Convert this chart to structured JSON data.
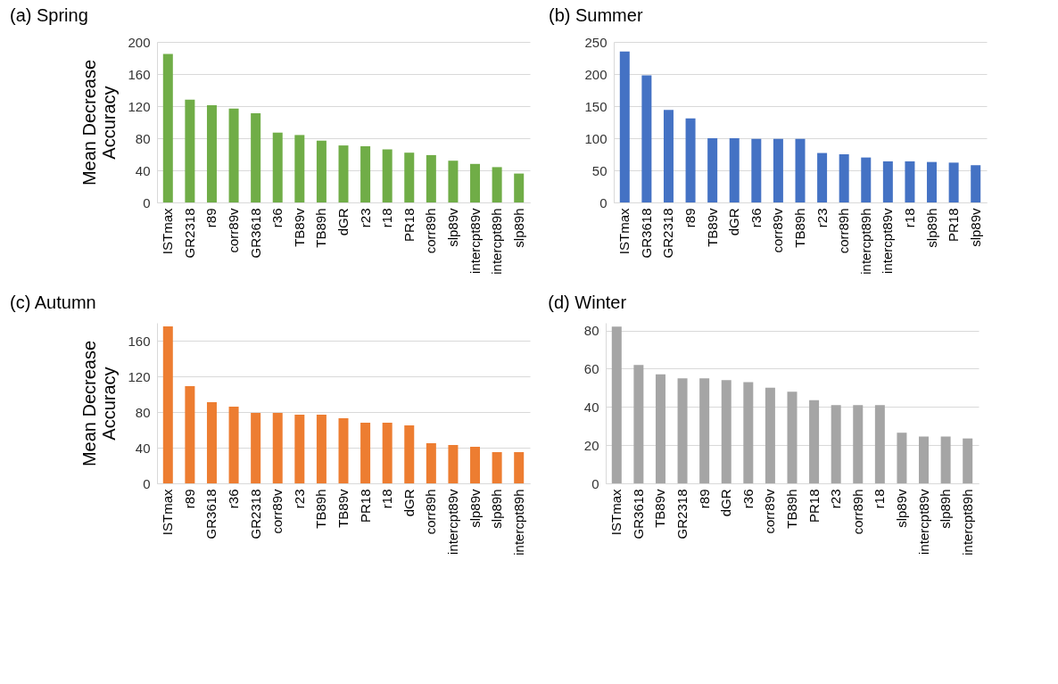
{
  "chart_data": [
    {
      "type": "bar",
      "title": "(a) Spring",
      "ylabel": "Mean Decrease Accuracy",
      "categories": [
        "ISTmax",
        "GR2318",
        "r89",
        "corr89v",
        "GR3618",
        "r36",
        "TB89v",
        "TB89h",
        "dGR",
        "r23",
        "r18",
        "PR18",
        "corr89h",
        "slp89v",
        "intercpt89v",
        "intercpt89h",
        "slp89h"
      ],
      "values": [
        185,
        128,
        121,
        117,
        111,
        87,
        84,
        77,
        71,
        70,
        66,
        62,
        59,
        52,
        48,
        44,
        36
      ],
      "color": "#70ad47",
      "ylim": [
        0,
        200
      ],
      "yticks": [
        0,
        40,
        80,
        120,
        160,
        200
      ],
      "grid": "y"
    },
    {
      "type": "bar",
      "title": "(b) Summer",
      "categories": [
        "ISTmax",
        "GR3618",
        "GR2318",
        "r89",
        "TB89v",
        "dGR",
        "r36",
        "corr89v",
        "TB89h",
        "r23",
        "corr89h",
        "intercpt89h",
        "intercpt89v",
        "r18",
        "slp89h",
        "PR18",
        "slp89v"
      ],
      "values": [
        235,
        198,
        144,
        131,
        100,
        100,
        99,
        99,
        99,
        77,
        75,
        70,
        64,
        64,
        63,
        62,
        58
      ],
      "color": "#4472c4",
      "ylim": [
        0,
        250
      ],
      "yticks": [
        0,
        50,
        100,
        150,
        200,
        250
      ],
      "grid": "y"
    },
    {
      "type": "bar",
      "title": "(c) Autumn",
      "ylabel": "Mean Decrease Accuracy",
      "categories": [
        "ISTmax",
        "r89",
        "GR3618",
        "r36",
        "GR2318",
        "corr89v",
        "r23",
        "TB89h",
        "TB89v",
        "PR18",
        "r18",
        "dGR",
        "corr89h",
        "intercpt89v",
        "slp89v",
        "slp89h",
        "intercpt89h"
      ],
      "values": [
        176,
        109,
        91,
        86,
        79,
        79,
        77,
        77,
        73,
        68,
        68,
        65,
        45,
        43,
        41,
        35,
        35
      ],
      "color": "#ed7d31",
      "ylim": [
        0,
        180
      ],
      "yticks": [
        0,
        40,
        80,
        120,
        160
      ],
      "grid": "y"
    },
    {
      "type": "bar",
      "title": "(d) Winter",
      "categories": [
        "ISTmax",
        "GR3618",
        "TB89v",
        "GR2318",
        "r89",
        "dGR",
        "r36",
        "corr89v",
        "TB89h",
        "PR18",
        "r23",
        "corr89h",
        "r18",
        "slp89v",
        "intercpt89v",
        "slp89h",
        "intercpt89h"
      ],
      "values": [
        82,
        62,
        57,
        55,
        55,
        54,
        53,
        50,
        48,
        43.5,
        41,
        41,
        41,
        26.5,
        24.5,
        24.5,
        23.5
      ],
      "color": "#a5a5a5",
      "ylim": [
        0,
        84
      ],
      "yticks": [
        0,
        20,
        40,
        60,
        80
      ],
      "grid": "y"
    }
  ]
}
